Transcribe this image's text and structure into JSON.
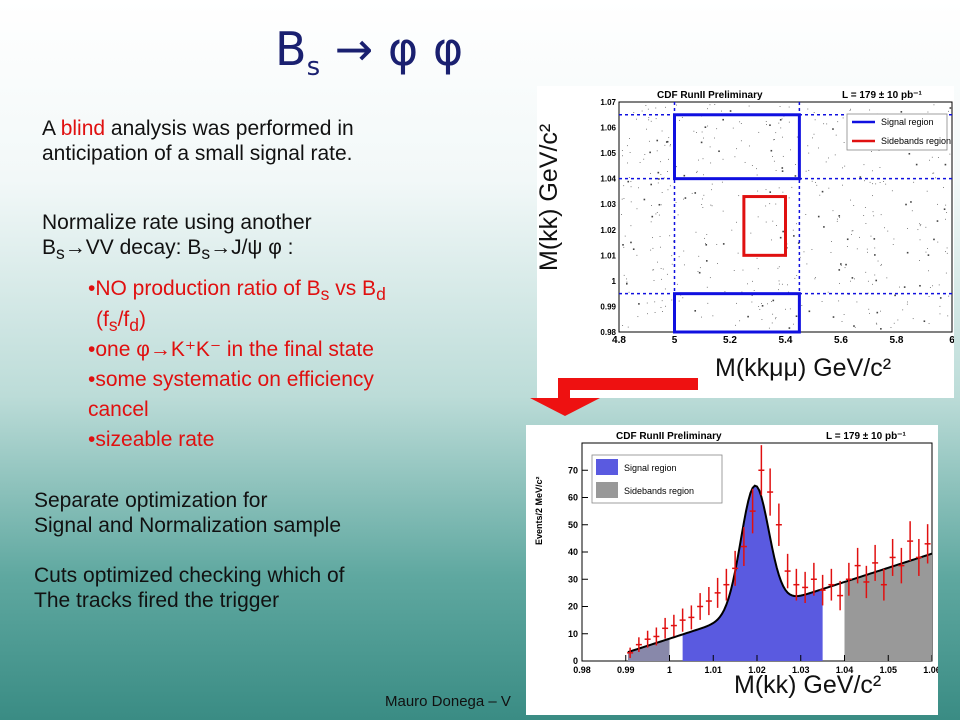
{
  "slide": {
    "title_main": "B",
    "title_sub": "s",
    "title_rest": " → φ φ",
    "para1_a": "A ",
    "para1_blind": "blind",
    "para1_b": " analysis was performed in",
    "para1_line2": "anticipation of a small signal rate.",
    "norm_line1": "Normalize rate using another",
    "norm_line2_a": "B",
    "norm_line2_s": "s",
    "norm_line2_b": "→VV decay: B",
    "norm_line2_s2": "s",
    "norm_line2_c": "→J/ψ φ :",
    "bullets": [
      "•NO production ratio of B",
      "•one φ→K⁺K⁻ in the final state",
      "•some systematic on efficiency",
      "cancel",
      "•sizeable rate"
    ],
    "bullet1_sub_s": "s",
    "bullet1_vs": " vs B",
    "bullet1_sub_d": "d",
    "bullet1_line2": "(f",
    "bullet1_line2_s": "s",
    "bullet1_line2_mid": "/f",
    "bullet1_line2_d": "d",
    "bullet1_line2_end": ")",
    "sep1": "Separate optimization for",
    "sep2": "Signal and Normalization sample",
    "cuts1": "Cuts optimized checking which of",
    "cuts2": "The tracks fired the trigger",
    "footer": "Mauro Donega – V"
  },
  "plot2d": {
    "header": "CDF RunII Preliminary",
    "lumi": "L = 179 ± 10 pb⁻¹",
    "legend": [
      "Signal region",
      "Sidebands region"
    ],
    "ylabel": "M(kk) GeV/c²",
    "xlabel": "M(kkμμ) GeV/c²",
    "xticks": [
      "4.8",
      "5",
      "5.2",
      "5.4",
      "5.6",
      "5.8",
      "6"
    ],
    "yticks": [
      "0.98",
      "0.99",
      "1",
      "1.01",
      "1.02",
      "1.03",
      "1.04",
      "1.05",
      "1.06",
      "1.07"
    ],
    "colors": {
      "signal": "#1010e0",
      "sideband": "#e01010"
    }
  },
  "plot1d": {
    "header": "CDF RunII Preliminary",
    "lumi": "L = 179 ± 10 pb⁻¹",
    "legend": [
      "Signal region",
      "Sidebands region"
    ],
    "ylabel": "Events/2 MeV/c²",
    "xlabel": "M(kk) GeV/c²",
    "xticks": [
      "0.98",
      "0.99",
      "1",
      "1.01",
      "1.02",
      "1.03",
      "1.04",
      "1.05",
      "1.06"
    ],
    "yticks": [
      "0",
      "10",
      "20",
      "30",
      "40",
      "50",
      "60",
      "70"
    ],
    "colors": {
      "signal": "#5a5ae0",
      "sideband": "#999999"
    }
  },
  "chart_data": [
    {
      "type": "scatter",
      "title": "CDF RunII Preliminary",
      "xlabel": "M(kkμμ) GeV/c²",
      "ylabel": "M(kk) GeV/c²",
      "xlim": [
        4.8,
        6.0
      ],
      "ylim": [
        0.98,
        1.07
      ],
      "grid": true,
      "legend_position": "top-right",
      "regions": [
        {
          "name": "Signal region",
          "x": [
            5.0,
            5.45
          ],
          "y": [
            1.04,
            1.065
          ]
        },
        {
          "name": "Signal region",
          "x": [
            5.0,
            5.45
          ],
          "y": [
            0.98,
            0.995
          ]
        },
        {
          "name": "Sidebands region",
          "x": [
            5.25,
            5.4
          ],
          "y": [
            1.01,
            1.033
          ]
        }
      ]
    },
    {
      "type": "bar",
      "title": "CDF RunII Preliminary",
      "xlabel": "M(kk) GeV/c²",
      "ylabel": "Events/2 MeV/c²",
      "xlim": [
        0.98,
        1.06
      ],
      "ylim": [
        0,
        80
      ],
      "legend_position": "top-left",
      "x": [
        0.991,
        0.993,
        0.995,
        0.997,
        0.999,
        1.001,
        1.003,
        1.005,
        1.007,
        1.009,
        1.011,
        1.013,
        1.015,
        1.017,
        1.019,
        1.021,
        1.023,
        1.025,
        1.027,
        1.029,
        1.031,
        1.033,
        1.035,
        1.037,
        1.039,
        1.041,
        1.043,
        1.045,
        1.047,
        1.049,
        1.051,
        1.053,
        1.055,
        1.057,
        1.059
      ],
      "values": [
        3,
        6,
        8,
        9,
        12,
        13,
        15,
        16,
        20,
        22,
        25,
        28,
        34,
        42,
        55,
        70,
        62,
        50,
        33,
        28,
        27,
        30,
        26,
        28,
        24,
        30,
        35,
        29,
        36,
        28,
        38,
        35,
        44,
        38,
        43
      ],
      "series": [
        {
          "name": "Signal region",
          "range": [
            1.003,
            1.035
          ]
        },
        {
          "name": "Sidebands region",
          "range": [
            1.04,
            1.06
          ]
        }
      ]
    }
  ]
}
